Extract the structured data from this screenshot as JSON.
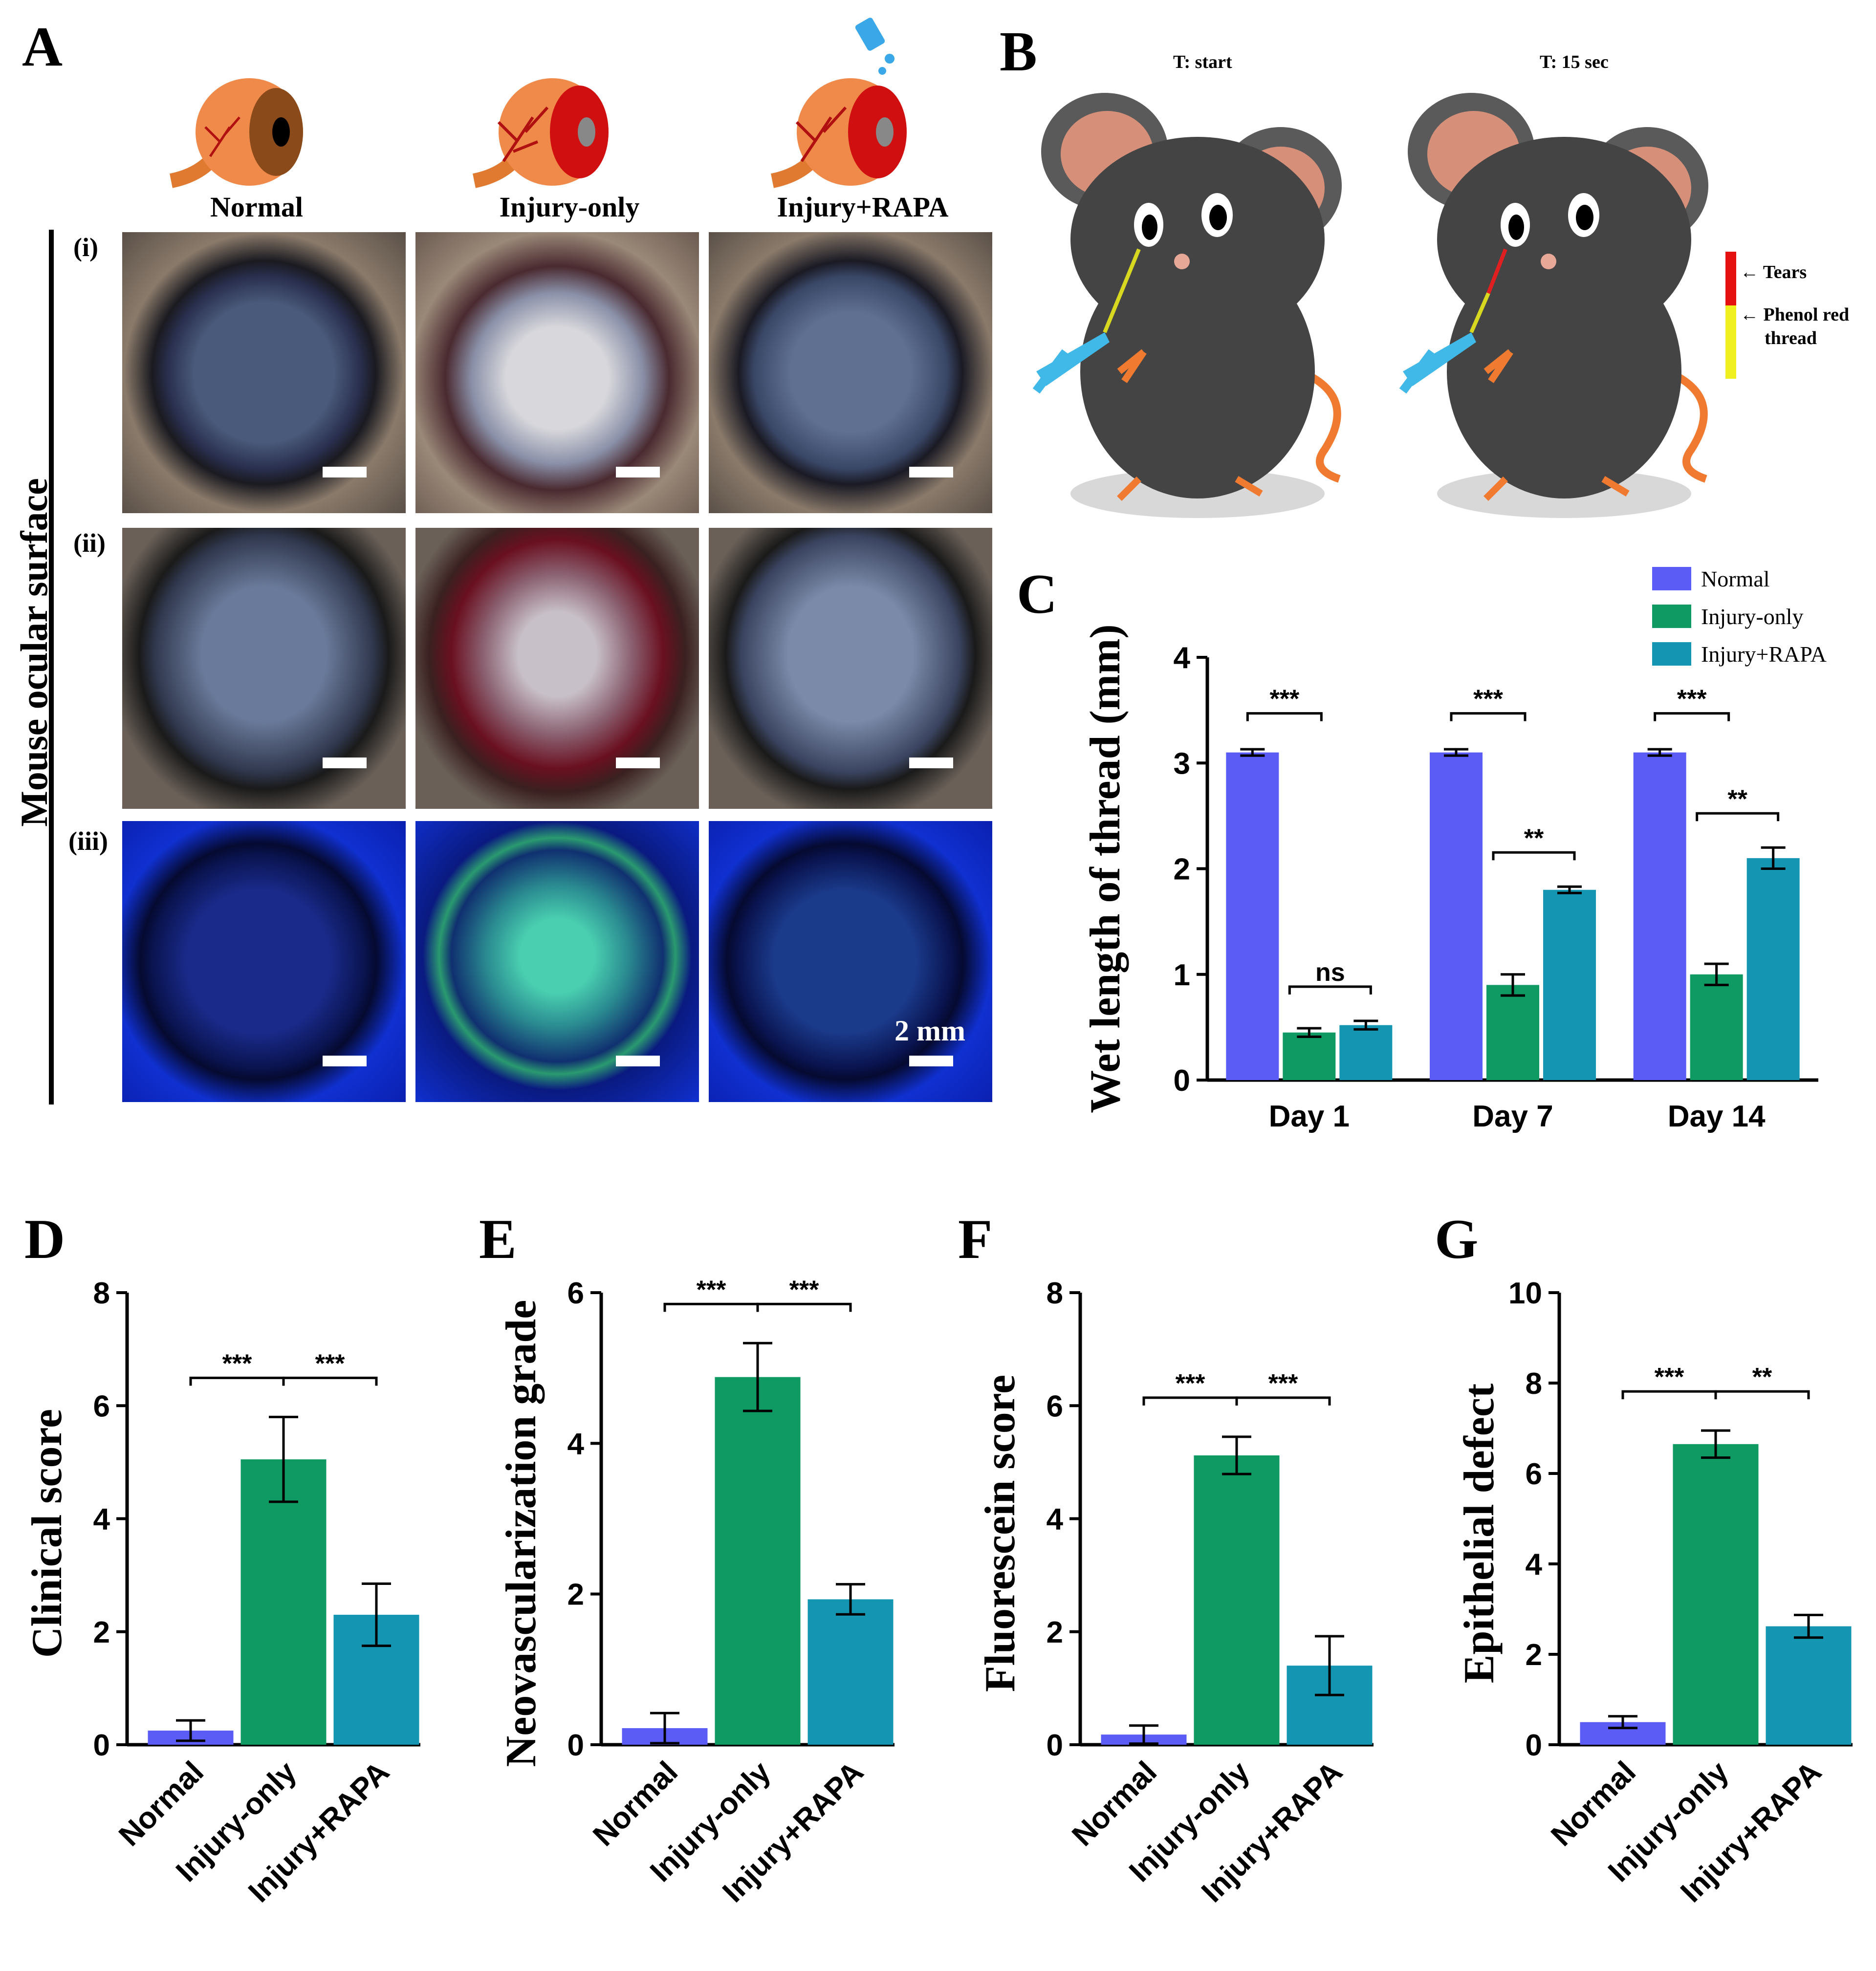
{
  "panel_labels": {
    "A": "A",
    "B": "B",
    "C": "C",
    "D": "D",
    "E": "E",
    "F": "F",
    "G": "G"
  },
  "panel_a": {
    "groups": [
      "Normal",
      "Injury-only",
      "Injury+RAPA"
    ],
    "rows": [
      "(i)",
      "(ii)",
      "(iii)"
    ],
    "side_label": "Mouse ocular surface",
    "scale_bar": "2 mm"
  },
  "panel_b": {
    "time_start": "T: start",
    "time_end": "T: 15 sec",
    "legend_tears": "Tears",
    "legend_thread_1": "Phenol red",
    "legend_thread_2": "thread"
  },
  "colors": {
    "normal": "#5b5bf5",
    "injury": "#0f9a64",
    "rapa": "#1496b2"
  },
  "chart_data": [
    {
      "id": "C",
      "type": "bar",
      "title": "",
      "ylabel": "Wet length of thread (mm)",
      "ylim": [
        0,
        4
      ],
      "yticks": [
        "0",
        "1",
        "2",
        "3",
        "4"
      ],
      "categories": [
        "Day 1",
        "Day 7",
        "Day 14"
      ],
      "legend": [
        "Normal",
        "Injury-only",
        "Injury+RAPA"
      ],
      "legend_position": "top-right",
      "series": [
        {
          "name": "Normal",
          "values": [
            3.1,
            3.1,
            3.1
          ],
          "errors": [
            0.03,
            0.03,
            0.03
          ]
        },
        {
          "name": "Injury-only",
          "values": [
            0.45,
            0.9,
            1.0
          ],
          "errors": [
            0.04,
            0.1,
            0.1
          ]
        },
        {
          "name": "Injury+RAPA",
          "values": [
            0.52,
            1.8,
            2.1
          ],
          "errors": [
            0.04,
            0.03,
            0.1
          ]
        }
      ],
      "significance": [
        "***",
        "ns",
        "***",
        "**",
        "***",
        "**"
      ]
    },
    {
      "id": "D",
      "type": "bar",
      "ylabel": "Clinical score",
      "ylim": [
        0,
        8
      ],
      "yticks": [
        "0",
        "2",
        "4",
        "6",
        "8"
      ],
      "categories": [
        "Normal",
        "Injury-only",
        "Injury+RAPA"
      ],
      "values": [
        0.25,
        5.05,
        2.3
      ],
      "errors": [
        0.18,
        0.75,
        0.55
      ],
      "significance": [
        "***",
        "***"
      ]
    },
    {
      "id": "E",
      "type": "bar",
      "ylabel": "Neovascularization grade",
      "ylim": [
        0,
        6
      ],
      "yticks": [
        "0",
        "2",
        "4",
        "6"
      ],
      "categories": [
        "Normal",
        "Injury-only",
        "Injury+RAPA"
      ],
      "values": [
        0.22,
        4.88,
        1.93
      ],
      "errors": [
        0.2,
        0.45,
        0.2
      ],
      "significance": [
        "***",
        "***"
      ]
    },
    {
      "id": "F",
      "type": "bar",
      "ylabel": "Fluorescein score",
      "ylim": [
        0,
        8
      ],
      "yticks": [
        "0",
        "2",
        "4",
        "6",
        "8"
      ],
      "categories": [
        "Normal",
        "Injury-only",
        "Injury+RAPA"
      ],
      "values": [
        0.18,
        5.12,
        1.4
      ],
      "errors": [
        0.16,
        0.33,
        0.52
      ],
      "significance": [
        "***",
        "***"
      ]
    },
    {
      "id": "G",
      "type": "bar",
      "ylabel": "Epithelial defect",
      "ylim": [
        0,
        10
      ],
      "yticks": [
        "0",
        "2",
        "4",
        "6",
        "8",
        "10"
      ],
      "categories": [
        "Normal",
        "Injury-only",
        "Injury+RAPA"
      ],
      "values": [
        0.5,
        6.65,
        2.62
      ],
      "errors": [
        0.13,
        0.3,
        0.25
      ],
      "significance": [
        "***",
        "**"
      ]
    }
  ]
}
